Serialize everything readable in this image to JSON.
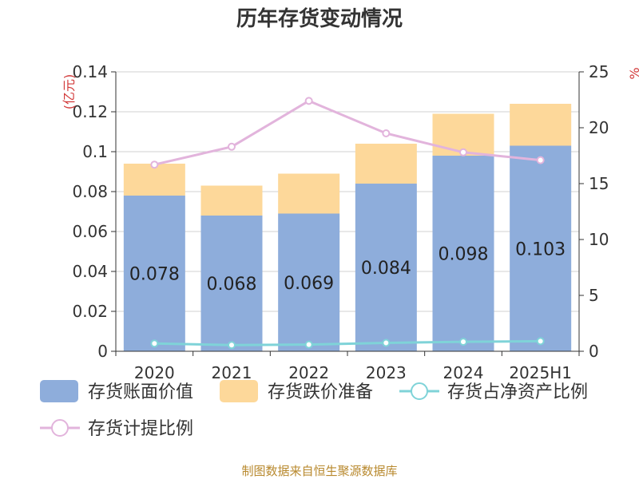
{
  "chart_data": {
    "type": "bar",
    "title": "历年存货变动情况",
    "left_axis_unit": "(亿元)",
    "right_axis_unit": "%",
    "categories": [
      "2020",
      "2021",
      "2022",
      "2023",
      "2024",
      "2025H1"
    ],
    "left_ylim": [
      0,
      0.14
    ],
    "left_ticks": [
      "0",
      "0.02",
      "0.04",
      "0.06",
      "0.08",
      "0.1",
      "0.12",
      "0.14"
    ],
    "right_ylim": [
      0,
      25
    ],
    "right_ticks": [
      "0",
      "5",
      "10",
      "15",
      "20",
      "25"
    ],
    "grid": true,
    "legend_position": "bottom",
    "bar_series": [
      {
        "name": "存货账面价值",
        "color": "#8eaddb",
        "values": [
          0.078,
          0.068,
          0.069,
          0.084,
          0.098,
          0.103
        ],
        "labels": [
          "0.078",
          "0.068",
          "0.069",
          "0.084",
          "0.098",
          "0.103"
        ]
      },
      {
        "name": "存货跌价准备",
        "color": "#fdd89a",
        "values": [
          0.016,
          0.015,
          0.02,
          0.02,
          0.021,
          0.021
        ]
      }
    ],
    "line_series": [
      {
        "name": "存货占净资产比例",
        "color": "#7fd3d8",
        "axis": "right",
        "values": [
          0.7,
          0.55,
          0.6,
          0.75,
          0.85,
          0.9
        ]
      },
      {
        "name": "存货计提比例",
        "color": "#e2b4dc",
        "axis": "right",
        "values": [
          16.7,
          18.3,
          22.4,
          19.5,
          17.8,
          17.1
        ]
      }
    ]
  },
  "source": "制图数据来自恒生聚源数据库"
}
